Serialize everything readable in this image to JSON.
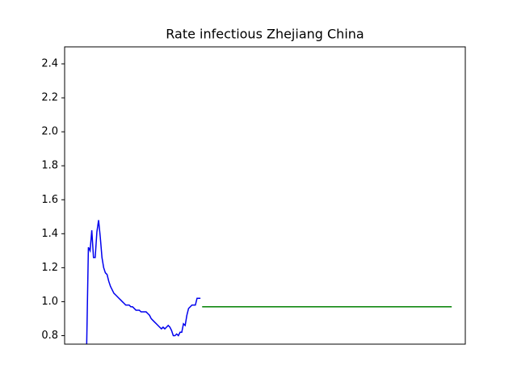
{
  "chart_data": {
    "type": "line",
    "title": "Rate infectious Zhejiang China",
    "xlim": [
      0,
      236
    ],
    "ylim": [
      0.75,
      2.5
    ],
    "yticks": [
      0.8,
      {
        "value": 1.0,
        "label": "1.0"
      },
      1.2,
      1.4,
      1.6,
      1.8,
      {
        "value": 2.0,
        "label": "2.0"
      },
      2.2,
      2.4
    ],
    "series": [
      {
        "color": "#0000ee",
        "x": [
          13,
          14,
          15,
          16,
          17,
          18,
          19,
          20,
          21,
          22,
          23,
          24,
          25,
          26,
          27,
          28,
          29,
          30,
          31,
          32,
          33,
          34,
          35,
          36,
          37,
          38,
          39,
          40,
          41,
          42,
          43,
          44,
          45,
          46,
          47,
          48,
          49,
          50,
          51,
          52,
          53,
          54,
          55,
          56,
          57,
          58,
          59,
          60,
          61,
          62,
          63,
          64,
          65,
          66,
          67,
          68,
          69,
          70,
          71,
          72,
          73,
          74,
          75,
          76,
          77,
          78,
          79,
          80
        ],
        "values": [
          0.75,
          1.32,
          1.3,
          1.42,
          1.26,
          1.26,
          1.41,
          1.48,
          1.38,
          1.26,
          1.2,
          1.17,
          1.16,
          1.12,
          1.09,
          1.07,
          1.05,
          1.04,
          1.03,
          1.02,
          1.01,
          1.0,
          0.99,
          0.98,
          0.98,
          0.98,
          0.97,
          0.97,
          0.96,
          0.95,
          0.95,
          0.95,
          0.94,
          0.94,
          0.94,
          0.94,
          0.93,
          0.92,
          0.9,
          0.89,
          0.88,
          0.87,
          0.86,
          0.85,
          0.84,
          0.85,
          0.84,
          0.85,
          0.86,
          0.85,
          0.83,
          0.8,
          0.8,
          0.81,
          0.8,
          0.82,
          0.82,
          0.87,
          0.86,
          0.92,
          0.96,
          0.97,
          0.98,
          0.98,
          0.98,
          1.02,
          1.02,
          1.02
        ]
      },
      {
        "color": "#008000",
        "x": [
          81,
          228
        ],
        "values": [
          0.97,
          0.97
        ]
      }
    ]
  }
}
